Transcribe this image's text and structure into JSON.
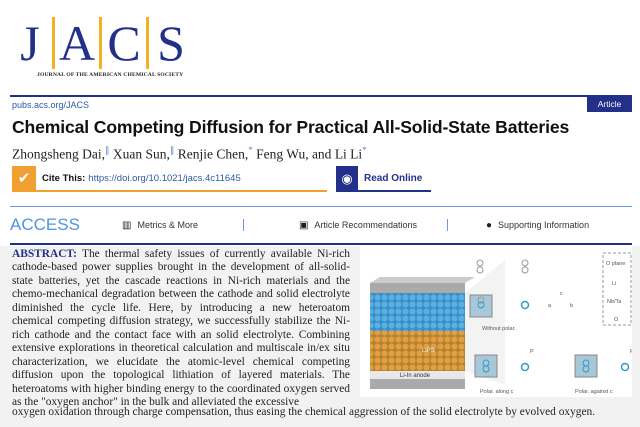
{
  "logo": {
    "letters": [
      "J",
      "A",
      "C",
      "S"
    ],
    "subtitle": "JOURNAL OF THE AMERICAN CHEMICAL SOCIETY"
  },
  "header": {
    "url": "pubs.acs.org/JACS",
    "badge": "Article"
  },
  "title": "Chemical Competing Diffusion for Practical All-Solid-State Batteries",
  "authors": [
    {
      "name": "Zhongsheng Dai,",
      "mark": "∥"
    },
    {
      "name": "Xuan Sun,",
      "mark": "∥"
    },
    {
      "name": "Renjie Chen,",
      "mark": "*"
    },
    {
      "name": "Feng Wu, and",
      "mark": ""
    },
    {
      "name": "Li Li",
      "mark": "*"
    }
  ],
  "cite": {
    "label": "Cite This:",
    "doi": "https://doi.org/10.1021/jacs.4c11645"
  },
  "read_online": "Read Online",
  "access": {
    "label": "ACCESS",
    "items": [
      "Metrics & More",
      "Article Recommendations",
      "Supporting Information"
    ]
  },
  "abstract": {
    "heading": "ABSTRACT:",
    "text": "The thermal safety issues of currently available Ni-rich cathode-based power supplies brought in the development of all-solid-state batteries, yet the cascade reactions in Ni-rich materials and the chemo-mechanical degradation between the cathode and solid electrolyte diminished the cycle life. Here, by introducing a new heteroatom chemical competing diffusion strategy, we successfully stabilize the Ni-rich cathode and the contact face with an solid electrolyte. Combining extensive explorations in theoretical calculation and multiscale in/ex situ characterization, we elucidate the atomic-level chemical competing diffusion upon the topological lithiation of layered materials. The heteroatoms with higher binding energy to the coordinated oxygen served as the \"oxygen anchor\" in the bulk and alleviated the excessive",
    "wide_line": "oxygen oxidation through charge compensation, thus easing the chemical aggression of the solid electrolyte by evolved oxygen."
  },
  "figure": {
    "labels": {
      "lips": "LiPS",
      "anode": "Li-In anode",
      "without": "Without polar.",
      "along": "Polar. along c",
      "against": "Polar. against c",
      "legend": [
        "O plane",
        "Li",
        "Nb/Ta",
        "O"
      ],
      "axes": [
        "c",
        "a",
        "b"
      ],
      "p": "P"
    }
  }
}
